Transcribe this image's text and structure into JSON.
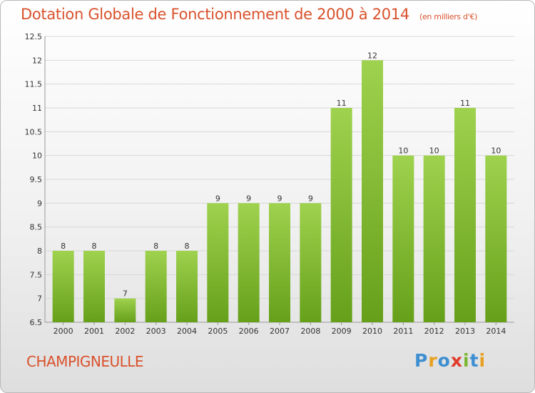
{
  "header": {
    "title": "Dotation Globale de Fonctionnement de 2000 à 2014",
    "subtitle": "(en milliers d'€)"
  },
  "footer": {
    "commune": "CHAMPIGNEULLE",
    "brand": "Proxiti"
  },
  "colors": {
    "title": "#d9512c",
    "bar_light": "#9fd24e",
    "bar_dark": "#66a01a",
    "grid": "#d8d8d8"
  },
  "chart_data": {
    "type": "bar",
    "title": "Dotation Globale de Fonctionnement de 2000 à 2014",
    "subtitle": "(en milliers d'€)",
    "categories": [
      "2000",
      "2001",
      "2002",
      "2003",
      "2004",
      "2005",
      "2006",
      "2007",
      "2008",
      "2009",
      "2010",
      "2011",
      "2012",
      "2013",
      "2014"
    ],
    "values": [
      8,
      8,
      7,
      8,
      8,
      9,
      9,
      9,
      9,
      11,
      12,
      10,
      10,
      11,
      10
    ],
    "data_labels": [
      "8",
      "8",
      "7",
      "8",
      "8",
      "9",
      "9",
      "9",
      "9",
      "11",
      "12",
      "10",
      "10",
      "11",
      "10"
    ],
    "ylim": [
      6.5,
      12.5
    ],
    "yticks": [
      "6.5",
      "7",
      "7.5",
      "8",
      "8.5",
      "9",
      "9.5",
      "10",
      "10.5",
      "11",
      "11.5",
      "12",
      "12.5"
    ],
    "grid": true,
    "legend": "none"
  }
}
